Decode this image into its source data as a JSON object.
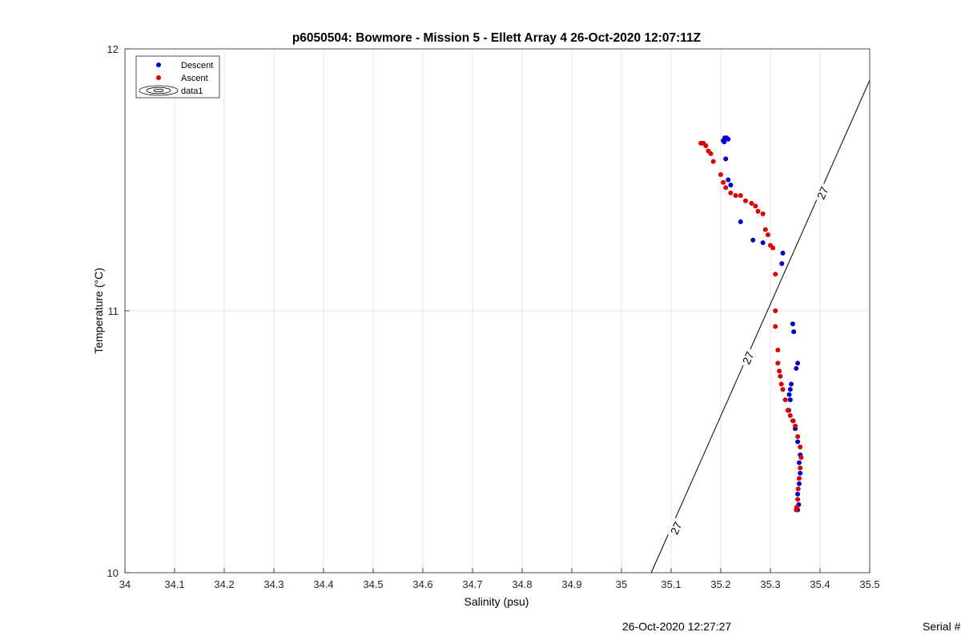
{
  "chart_data": {
    "type": "scatter",
    "title": "p6050504: Bowmore - Mission 5 - Ellett Array 4 26-Oct-2020 12:07:11Z",
    "xlabel": "Salinity (psu)",
    "ylabel": "Temperature (°C)",
    "xlim": [
      34,
      35.5
    ],
    "ylim": [
      10,
      12
    ],
    "xticks": [
      "34",
      "34.1",
      "34.2",
      "34.3",
      "34.4",
      "34.5",
      "34.6",
      "34.7",
      "34.8",
      "34.9",
      "35",
      "35.1",
      "35.2",
      "35.3",
      "35.4",
      "35.5"
    ],
    "yticks": [
      "10",
      "11",
      "12"
    ],
    "grid": true,
    "legend_position": "top-left",
    "legend": [
      {
        "label": "Descent",
        "color": "#0000cc",
        "marker": "dot"
      },
      {
        "label": "Ascent",
        "color": "#dd0000",
        "marker": "dot"
      },
      {
        "label": "data1",
        "color": "#000000",
        "marker": "contour"
      }
    ],
    "series": [
      {
        "name": "Descent",
        "color": "#0000cc",
        "points": [
          [
            35.205,
            11.65
          ],
          [
            35.208,
            11.66
          ],
          [
            35.212,
            11.66
          ],
          [
            35.215,
            11.655
          ],
          [
            35.207,
            11.645
          ],
          [
            35.21,
            11.58
          ],
          [
            35.215,
            11.5
          ],
          [
            35.22,
            11.48
          ],
          [
            35.24,
            11.34
          ],
          [
            35.265,
            11.27
          ],
          [
            35.285,
            11.26
          ],
          [
            35.325,
            11.22
          ],
          [
            35.323,
            11.18
          ],
          [
            35.345,
            10.95
          ],
          [
            35.347,
            10.92
          ],
          [
            35.355,
            10.8
          ],
          [
            35.352,
            10.78
          ],
          [
            35.342,
            10.72
          ],
          [
            35.34,
            10.7
          ],
          [
            35.338,
            10.68
          ],
          [
            35.34,
            10.66
          ],
          [
            35.337,
            10.62
          ],
          [
            35.346,
            10.58
          ],
          [
            35.35,
            10.55
          ],
          [
            35.355,
            10.5
          ],
          [
            35.36,
            10.45
          ],
          [
            35.358,
            10.42
          ],
          [
            35.36,
            10.38
          ],
          [
            35.358,
            10.34
          ],
          [
            35.355,
            10.3
          ],
          [
            35.357,
            10.26
          ],
          [
            35.355,
            10.24
          ]
        ]
      },
      {
        "name": "Ascent",
        "color": "#dd0000",
        "points": [
          [
            35.16,
            11.64
          ],
          [
            35.165,
            11.64
          ],
          [
            35.17,
            11.63
          ],
          [
            35.175,
            11.61
          ],
          [
            35.18,
            11.6
          ],
          [
            35.185,
            11.57
          ],
          [
            35.2,
            11.52
          ],
          [
            35.205,
            11.49
          ],
          [
            35.21,
            11.47
          ],
          [
            35.22,
            11.45
          ],
          [
            35.23,
            11.44
          ],
          [
            35.24,
            11.44
          ],
          [
            35.25,
            11.42
          ],
          [
            35.262,
            11.41
          ],
          [
            35.27,
            11.4
          ],
          [
            35.275,
            11.38
          ],
          [
            35.285,
            11.37
          ],
          [
            35.29,
            11.31
          ],
          [
            35.295,
            11.29
          ],
          [
            35.3,
            11.25
          ],
          [
            35.305,
            11.24
          ],
          [
            35.31,
            11.14
          ],
          [
            35.31,
            11.0
          ],
          [
            35.31,
            10.94
          ],
          [
            35.315,
            10.85
          ],
          [
            35.315,
            10.8
          ],
          [
            35.318,
            10.77
          ],
          [
            35.32,
            10.75
          ],
          [
            35.322,
            10.72
          ],
          [
            35.325,
            10.7
          ],
          [
            35.33,
            10.66
          ],
          [
            35.335,
            10.62
          ],
          [
            35.34,
            10.6
          ],
          [
            35.345,
            10.58
          ],
          [
            35.35,
            10.56
          ],
          [
            35.355,
            10.52
          ],
          [
            35.36,
            10.48
          ],
          [
            35.362,
            10.44
          ],
          [
            35.36,
            10.4
          ],
          [
            35.358,
            10.36
          ],
          [
            35.356,
            10.32
          ],
          [
            35.355,
            10.28
          ],
          [
            35.353,
            10.25
          ],
          [
            35.352,
            10.24
          ]
        ]
      }
    ],
    "contour": {
      "name": "data1",
      "level_label": "27",
      "line": [
        [
          35.06,
          10.0
        ],
        [
          35.5,
          11.88
        ]
      ],
      "label_points": [
        [
          35.11,
          10.17
        ],
        [
          35.255,
          10.82
        ],
        [
          35.405,
          11.45
        ]
      ]
    }
  },
  "footer": {
    "timestamp": "26-Oct-2020 12:27:27",
    "serial": "Serial #"
  }
}
